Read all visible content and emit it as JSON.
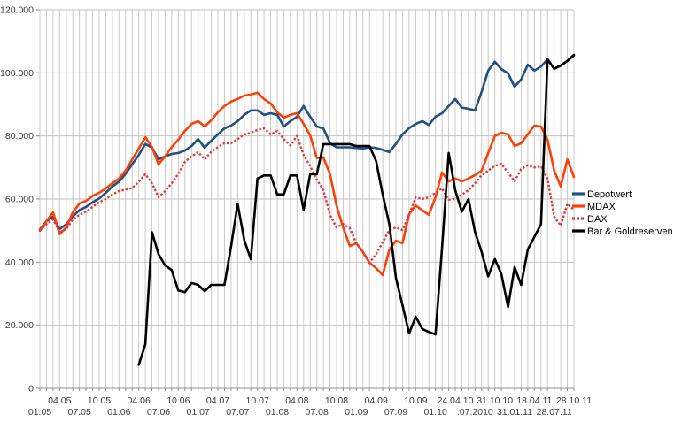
{
  "chart_data": {
    "type": "line",
    "title": "",
    "ylabel": "",
    "xlabel": "",
    "y_axis": {
      "min": 0,
      "max": 120000,
      "tick_step": 20000,
      "tick_labels": [
        "0",
        "20.000",
        "40.000",
        "60.000",
        "80.000",
        "100.000",
        "120.000"
      ]
    },
    "x_axis": {
      "points_count": 82,
      "label_every_n_points": 3,
      "labels": [
        "01.05",
        "04.05",
        "07.05",
        "10.05",
        "01.06",
        "04.06",
        "07.06",
        "10.06",
        "01.07",
        "04.07",
        "07.07",
        "10.07",
        "01.08",
        "04.08",
        "07.08",
        "10.08",
        "01.09",
        "04.09",
        "07.09",
        "10.09",
        "01.10",
        "24.04.10",
        ".07.2010",
        "31.10.10",
        "31.01.11",
        "18.04.11",
        "28.07.11",
        "28.10.11"
      ]
    },
    "grid": {
      "horizontal": true,
      "vertical": true
    },
    "legend": {
      "position": "right",
      "entries": [
        "Depotwert",
        "MDAX",
        "DAX",
        "Bar & Goldreserven"
      ]
    },
    "series": [
      {
        "name": "Depotwert",
        "color": "#215081",
        "line_style": "solid",
        "values": [
          50300,
          53000,
          54400,
          50500,
          52000,
          54500,
          56500,
          57500,
          59000,
          60200,
          62000,
          64000,
          65500,
          68000,
          71000,
          74000,
          77500,
          76300,
          72600,
          73500,
          74300,
          74600,
          75400,
          76800,
          79000,
          76300,
          78500,
          80500,
          82400,
          83300,
          84700,
          86700,
          88100,
          88100,
          86700,
          87200,
          86700,
          83000,
          84700,
          86100,
          89500,
          86100,
          83000,
          82400,
          77700,
          76400,
          76400,
          76400,
          76200,
          76000,
          76400,
          76200,
          75600,
          74900,
          77500,
          80500,
          82500,
          83800,
          84700,
          83500,
          86100,
          87200,
          89500,
          91700,
          89000,
          88600,
          88100,
          94000,
          100700,
          103500,
          101200,
          99800,
          95600,
          97900,
          102600,
          100700,
          102000,
          104300,
          101300,
          102300,
          103800,
          105500
        ]
      },
      {
        "name": "MDAX",
        "color": "#FC4108",
        "line_style": "solid",
        "values": [
          50000,
          53000,
          55800,
          48900,
          51000,
          55800,
          58600,
          59400,
          61000,
          62000,
          63400,
          65000,
          66500,
          69000,
          72500,
          76000,
          79600,
          76500,
          71000,
          73500,
          76500,
          78800,
          81600,
          83800,
          84700,
          83000,
          85000,
          87500,
          89500,
          90900,
          91700,
          92800,
          93100,
          93700,
          91700,
          90300,
          87500,
          85800,
          86700,
          87200,
          83800,
          80200,
          73000,
          73200,
          67900,
          57800,
          51000,
          45100,
          46000,
          43200,
          39800,
          38100,
          35900,
          44000,
          46800,
          46000,
          55200,
          58000,
          56400,
          55000,
          60600,
          68400,
          65600,
          66500,
          65600,
          66500,
          67600,
          69000,
          74600,
          80000,
          81000,
          80500,
          76800,
          77700,
          80500,
          83300,
          83000,
          78800,
          69000,
          64000,
          72600,
          67000
        ]
      },
      {
        "name": "DAX",
        "color": "#DC3939",
        "line_style": "dotted",
        "values": [
          50000,
          52000,
          53500,
          49500,
          50500,
          53500,
          55000,
          56000,
          57500,
          59000,
          60000,
          61500,
          62500,
          63000,
          63500,
          65500,
          67900,
          65000,
          60600,
          62500,
          65000,
          68000,
          71800,
          73500,
          74900,
          72600,
          75000,
          76500,
          77700,
          77700,
          79000,
          80500,
          81000,
          81900,
          82400,
          80500,
          81600,
          79000,
          77000,
          80000,
          74000,
          70400,
          66200,
          62800,
          55000,
          51000,
          52100,
          50800,
          46000,
          43200,
          39800,
          42600,
          46300,
          50200,
          51000,
          50200,
          55000,
          60600,
          60000,
          60600,
          62000,
          63400,
          59800,
          60000,
          61400,
          62800,
          65000,
          67600,
          69000,
          70500,
          71200,
          68400,
          65600,
          69500,
          70700,
          70000,
          70400,
          66500,
          54400,
          51600,
          58500,
          56600
        ]
      },
      {
        "name": "Bar & Goldreserven",
        "color": "#000000",
        "line_style": "solid",
        "values": [
          null,
          null,
          null,
          null,
          null,
          null,
          null,
          null,
          null,
          null,
          null,
          null,
          null,
          null,
          null,
          7500,
          14000,
          49500,
          42500,
          39000,
          37500,
          31000,
          30500,
          33400,
          32800,
          30800,
          32800,
          32800,
          32800,
          45000,
          58500,
          47000,
          40900,
          66500,
          67500,
          67500,
          61500,
          61500,
          67500,
          67500,
          56600,
          67900,
          67900,
          77400,
          77400,
          77400,
          77400,
          77400,
          76800,
          76800,
          76800,
          72000,
          61400,
          52000,
          35000,
          26400,
          17400,
          22700,
          18800,
          17900,
          17100,
          44600,
          74600,
          62800,
          56000,
          60000,
          49600,
          43200,
          35500,
          41000,
          36200,
          25800,
          38400,
          32800,
          44000,
          48000,
          52000,
          104300,
          101300,
          102300,
          103800,
          105700
        ]
      }
    ]
  },
  "colors": {
    "background": "#ffffff",
    "grid_vertical": "#c9c9c9",
    "grid_horizontal": "#c2c2c2",
    "axis": "#909090",
    "tick": "#909090",
    "label_text": "#3a3a3a",
    "legend_text": "#000000"
  }
}
